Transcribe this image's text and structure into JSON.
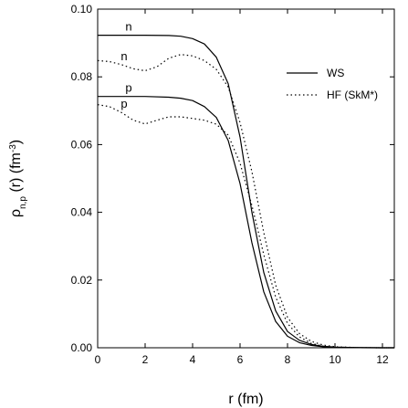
{
  "chart_data": {
    "type": "line",
    "xlabel": "r (fm)",
    "ylabel": {
      "prefix": "ρ",
      "subscript": "n,p",
      "middle": " (r) (fm",
      "superscript": "-3",
      "suffix": ")"
    },
    "xlim": [
      0,
      12.5
    ],
    "ylim": [
      0,
      0.1
    ],
    "xticks": [
      0,
      2,
      4,
      6,
      8,
      10,
      12
    ],
    "yticks": [
      0.0,
      0.02,
      0.04,
      0.06,
      0.08,
      0.1
    ],
    "ytick_labels": [
      "0.00",
      "0.02",
      "0.04",
      "0.06",
      "0.08",
      "0.10"
    ],
    "grid": false,
    "legend_position": "top-right",
    "legend": [
      {
        "label": "WS",
        "style": "solid"
      },
      {
        "label": "HF (SkM*)",
        "style": "dotted"
      }
    ],
    "series": [
      {
        "name": "WS",
        "label": "n",
        "style": "solid",
        "x": [
          0,
          1,
          2,
          3,
          3.5,
          4,
          4.5,
          5,
          5.5,
          6,
          6.5,
          7,
          7.5,
          8,
          8.5,
          9,
          9.5,
          10,
          11,
          12,
          12.5
        ],
        "y": [
          0.0923,
          0.0923,
          0.0923,
          0.0922,
          0.092,
          0.0913,
          0.0897,
          0.0858,
          0.078,
          0.0622,
          0.04,
          0.0222,
          0.0109,
          0.0048,
          0.0022,
          0.001,
          0.0004,
          0.0002,
          3e-05,
          0.0,
          0.0
        ]
      },
      {
        "name": "WS",
        "label": "p",
        "style": "solid",
        "x": [
          0,
          1,
          2,
          3,
          3.5,
          4,
          4.5,
          5,
          5.5,
          6,
          6.5,
          7,
          7.5,
          8,
          8.5,
          9,
          9.5,
          10,
          11,
          12,
          12.5
        ],
        "y": [
          0.0742,
          0.0742,
          0.0742,
          0.074,
          0.0737,
          0.073,
          0.0712,
          0.068,
          0.0612,
          0.0485,
          0.031,
          0.0165,
          0.0078,
          0.0034,
          0.0015,
          0.0007,
          0.0003,
          0.0001,
          2e-05,
          0.0,
          0.0
        ]
      },
      {
        "name": "HF (SkM*)",
        "label": "n",
        "style": "dotted",
        "x": [
          0,
          0.5,
          1,
          1.5,
          2,
          2.5,
          3,
          3.5,
          4,
          4.5,
          5,
          5.5,
          6,
          6.5,
          7,
          7.5,
          8,
          8.5,
          9,
          9.5,
          10,
          11,
          12,
          12.5
        ],
        "y": [
          0.0848,
          0.0845,
          0.0836,
          0.0824,
          0.0818,
          0.083,
          0.0855,
          0.0866,
          0.0862,
          0.0848,
          0.0822,
          0.077,
          0.0665,
          0.052,
          0.034,
          0.0185,
          0.009,
          0.0042,
          0.0019,
          0.0008,
          0.0003,
          5e-05,
          0.0,
          0.0
        ]
      },
      {
        "name": "HF (SkM*)",
        "label": "p",
        "style": "dotted",
        "x": [
          0,
          0.5,
          1,
          1.5,
          2,
          2.5,
          3,
          3.5,
          4,
          4.5,
          5,
          5.5,
          6,
          6.5,
          7,
          7.5,
          8,
          8.5,
          9,
          9.5,
          10,
          11,
          12,
          12.5
        ],
        "y": [
          0.0718,
          0.0712,
          0.0695,
          0.0672,
          0.0661,
          0.0672,
          0.0682,
          0.0682,
          0.0677,
          0.0672,
          0.066,
          0.0628,
          0.0545,
          0.042,
          0.0275,
          0.015,
          0.0072,
          0.0032,
          0.0013,
          0.0005,
          0.0002,
          3e-05,
          0.0,
          0.0
        ]
      }
    ]
  }
}
